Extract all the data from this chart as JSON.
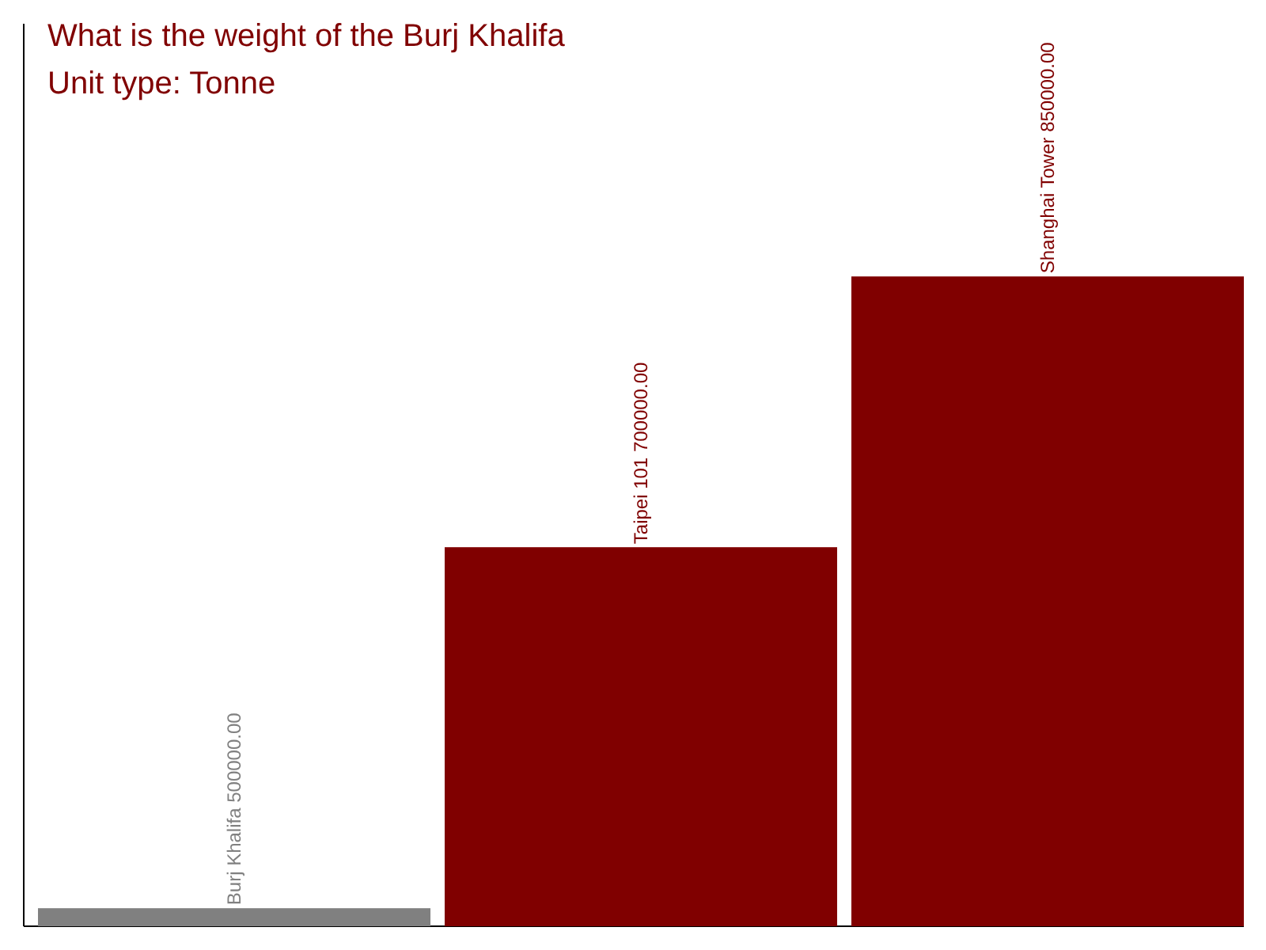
{
  "chart_data": {
    "type": "bar",
    "title": "What is the weight of the Burj Khalifa",
    "subtitle": "Unit type: Tonne",
    "categories": [
      null,
      null,
      null
    ],
    "values": [
      500000,
      700000,
      850000
    ],
    "colors": [
      "#808080",
      "#800000",
      "#800000"
    ],
    "value_labels": [
      "Burj Khalifa 500000.00",
      "Taipei 101 700000.00",
      "Shanghai Tower 850000.00"
    ],
    "ylim": [
      490000,
      990000
    ]
  }
}
